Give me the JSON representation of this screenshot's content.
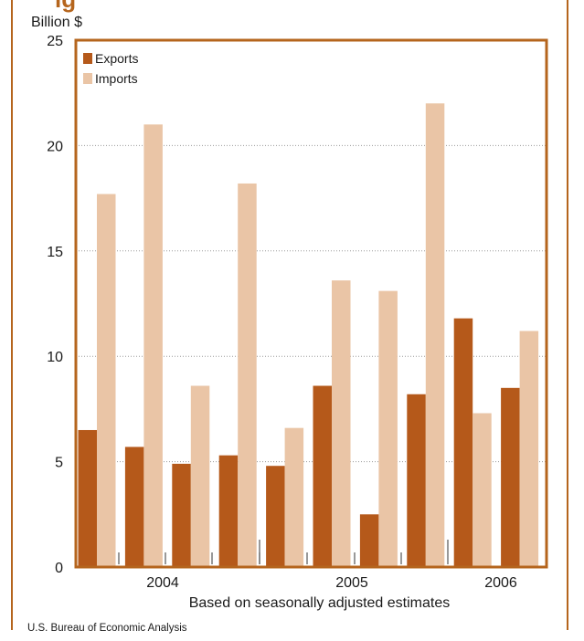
{
  "colors": {
    "accent": "#b5651d",
    "exports": "#b5591a",
    "imports": "#eac5a6",
    "grid": "#999999"
  },
  "title_fragment": "ig",
  "chart_data": {
    "type": "bar",
    "ylabel": "Billion $",
    "ylim": [
      0,
      25
    ],
    "yticks": [
      0,
      5,
      10,
      15,
      20,
      25
    ],
    "grid": true,
    "legend": "top-left",
    "x_tick_labels": [
      "2004",
      "2005",
      "2006"
    ],
    "series": [
      {
        "name": "Exports",
        "color": "#b5591a",
        "values": [
          6.5,
          5.7,
          4.9,
          5.3,
          4.8,
          8.6,
          2.5,
          8.2,
          11.8,
          8.5
        ]
      },
      {
        "name": "Imports",
        "color": "#eac5a6",
        "values": [
          17.7,
          21.0,
          8.6,
          18.2,
          6.6,
          13.6,
          13.1,
          22.0,
          7.3,
          11.2
        ]
      }
    ]
  },
  "note": "Based on seasonally adjusted estimates",
  "source": "U.S. Bureau of Economic Analysis"
}
